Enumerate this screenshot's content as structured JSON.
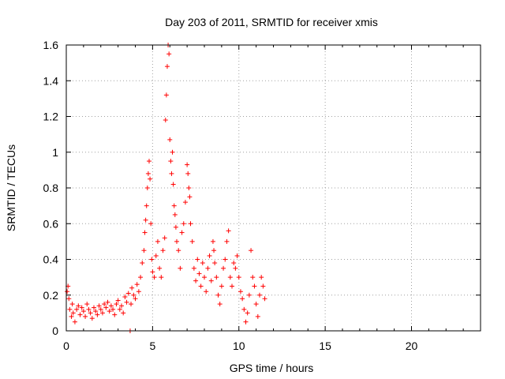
{
  "chart_data": {
    "type": "scatter",
    "title": "Day 203 of 2011, SRMTID for receiver xmis",
    "xlabel": "GPS time / hours",
    "ylabel": "SRMTID / TECUs",
    "xlim": [
      0,
      24
    ],
    "ylim": [
      0,
      1.6
    ],
    "xticks": [
      0,
      5,
      10,
      15,
      20
    ],
    "xtick_labels": [
      "0",
      "5",
      "10",
      "15",
      "20"
    ],
    "yticks": [
      0,
      0.2,
      0.4,
      0.6,
      0.8,
      1.0,
      1.2,
      1.4,
      1.6
    ],
    "ytick_labels": [
      "0",
      "0.2",
      "0.4",
      "0.6",
      "0.8",
      "1",
      "1.2",
      "1.4",
      "1.6"
    ],
    "grid": true,
    "marker": "+",
    "color": "#ff0000",
    "series": [
      {
        "name": "SRMTID",
        "x": [
          0.05,
          0.1,
          0.15,
          0.2,
          0.3,
          0.35,
          0.4,
          0.5,
          0.6,
          0.7,
          0.8,
          0.9,
          1.0,
          1.1,
          1.2,
          1.3,
          1.4,
          1.5,
          1.6,
          1.7,
          1.8,
          1.9,
          2.0,
          2.1,
          2.2,
          2.3,
          2.4,
          2.5,
          2.6,
          2.7,
          2.8,
          2.9,
          3.0,
          3.1,
          3.2,
          3.3,
          3.4,
          3.5,
          3.6,
          3.7,
          3.75,
          3.8,
          3.9,
          4.0,
          4.1,
          4.2,
          4.3,
          4.4,
          4.5,
          4.55,
          4.6,
          4.65,
          4.7,
          4.75,
          4.8,
          4.85,
          4.9,
          4.95,
          5.0,
          5.1,
          5.2,
          5.3,
          5.4,
          5.5,
          5.6,
          5.7,
          5.75,
          5.8,
          5.85,
          5.9,
          5.95,
          6.0,
          6.05,
          6.1,
          6.15,
          6.2,
          6.25,
          6.3,
          6.35,
          6.4,
          6.5,
          6.6,
          6.7,
          6.8,
          6.9,
          7.0,
          7.05,
          7.1,
          7.15,
          7.2,
          7.3,
          7.4,
          7.5,
          7.6,
          7.7,
          7.8,
          7.9,
          8.0,
          8.1,
          8.2,
          8.3,
          8.4,
          8.5,
          8.55,
          8.6,
          8.7,
          8.8,
          8.9,
          9.0,
          9.1,
          9.2,
          9.3,
          9.4,
          9.5,
          9.6,
          9.7,
          9.8,
          9.9,
          10.0,
          10.1,
          10.2,
          10.3,
          10.4,
          10.5,
          10.6,
          10.7,
          10.8,
          10.9,
          11.0,
          11.1,
          11.2,
          11.3,
          11.4,
          11.5
        ],
        "y": [
          0.22,
          0.25,
          0.18,
          0.12,
          0.08,
          0.15,
          0.1,
          0.05,
          0.12,
          0.14,
          0.09,
          0.13,
          0.11,
          0.08,
          0.15,
          0.12,
          0.1,
          0.07,
          0.13,
          0.11,
          0.09,
          0.14,
          0.12,
          0.1,
          0.15,
          0.13,
          0.16,
          0.11,
          0.14,
          0.12,
          0.09,
          0.15,
          0.17,
          0.12,
          0.14,
          0.1,
          0.19,
          0.16,
          0.21,
          0.0,
          0.15,
          0.24,
          0.2,
          0.18,
          0.26,
          0.22,
          0.3,
          0.38,
          0.45,
          0.55,
          0.62,
          0.7,
          0.8,
          0.88,
          0.95,
          0.85,
          0.6,
          0.4,
          0.33,
          0.3,
          0.42,
          0.5,
          0.35,
          0.3,
          0.45,
          0.52,
          1.18,
          1.32,
          1.48,
          1.6,
          1.55,
          1.07,
          0.95,
          0.88,
          1.0,
          0.82,
          0.7,
          0.65,
          0.58,
          0.5,
          0.45,
          0.35,
          0.55,
          0.6,
          0.72,
          0.93,
          0.88,
          0.8,
          0.75,
          0.6,
          0.5,
          0.35,
          0.28,
          0.4,
          0.32,
          0.25,
          0.38,
          0.3,
          0.22,
          0.35,
          0.42,
          0.28,
          0.5,
          0.45,
          0.38,
          0.3,
          0.2,
          0.15,
          0.25,
          0.35,
          0.4,
          0.5,
          0.56,
          0.3,
          0.25,
          0.38,
          0.35,
          0.42,
          0.3,
          0.22,
          0.18,
          0.12,
          0.05,
          0.1,
          0.2,
          0.45,
          0.3,
          0.25,
          0.15,
          0.08,
          0.2,
          0.3,
          0.25,
          0.18
        ]
      }
    ]
  }
}
